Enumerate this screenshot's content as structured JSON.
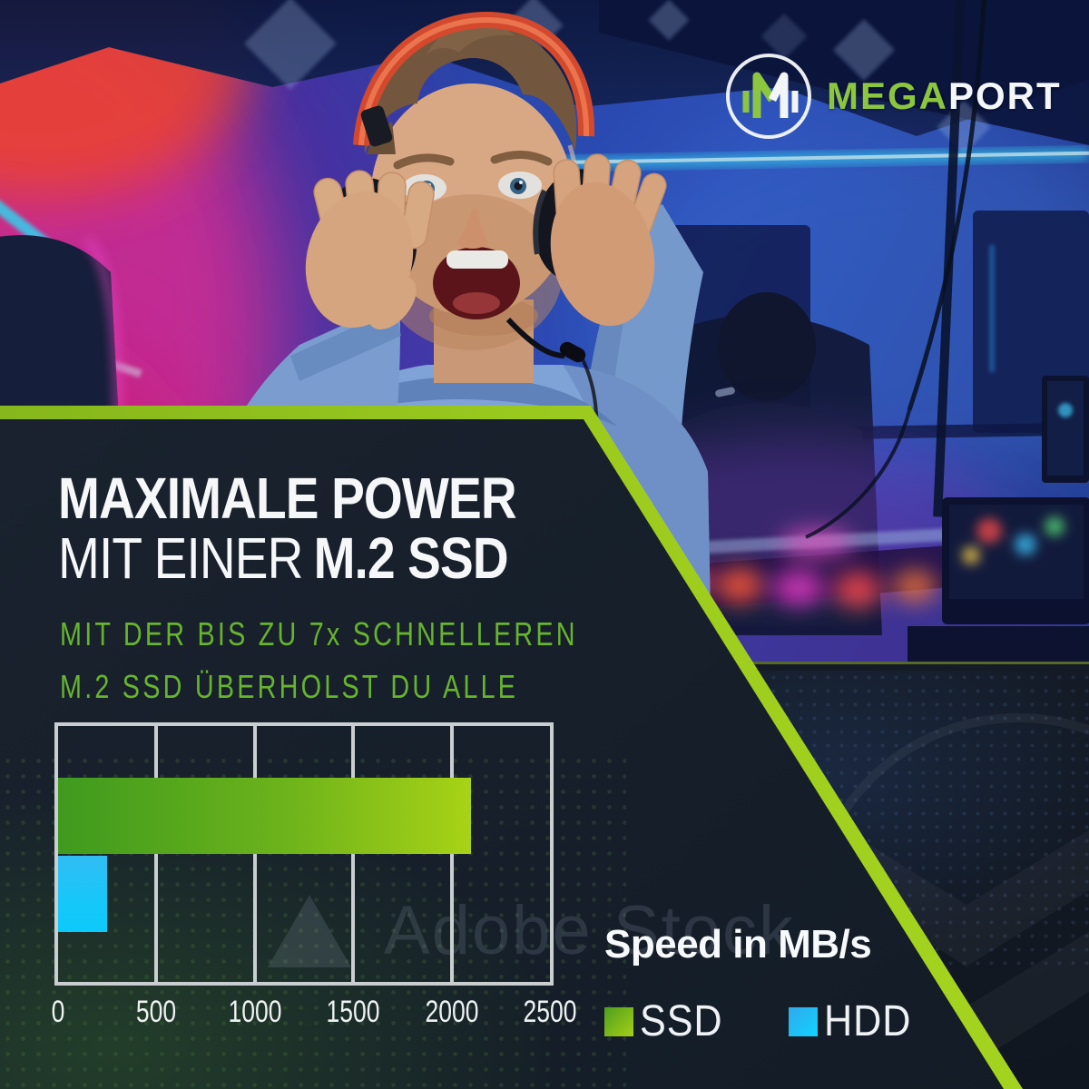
{
  "brand": {
    "mega": "MEGA",
    "port": "PORT",
    "monogram": "M"
  },
  "headline": {
    "line1": "MAXIMALE POWER",
    "line2_light": "MIT EINER",
    "line2_bold": "M.2 SSD"
  },
  "subheadline": {
    "line1": "MIT DER BIS ZU 7x SCHNELLEREN",
    "line2": "M.2 SSD ÜBERHOLST DU ALLE"
  },
  "chart_data": {
    "type": "bar",
    "orientation": "horizontal",
    "title": "Speed in MB/s",
    "categories": [
      "SSD",
      "HDD"
    ],
    "values": [
      2100,
      250
    ],
    "xlim": [
      0,
      2500
    ],
    "ticks": [
      "0",
      "500",
      "1000",
      "1500",
      "2000",
      "2500"
    ],
    "grid": true,
    "legend_position": "bottom-right",
    "legend": [
      {
        "label": "SSD",
        "color_start": "#4c9e1d",
        "color_end": "#a6d016"
      },
      {
        "label": "HDD",
        "color_start": "#2fa9ec",
        "color_end": "#12d3ff"
      }
    ]
  },
  "watermark": {
    "text": "Adobe Stock"
  },
  "colors": {
    "accent_green": "#9bcb1e",
    "subheadline_green": "#67b42f",
    "panel_bg": "#18212c",
    "bottom_bg": "#141a25",
    "bar_green_start": "#3f9a1e",
    "bar_green_end": "#a8d216",
    "bar_blue_start": "#31bdf4",
    "bar_blue_end": "#0ccafc",
    "chart_border": "#c9ced0",
    "headline_text": "#f5f7f8"
  }
}
